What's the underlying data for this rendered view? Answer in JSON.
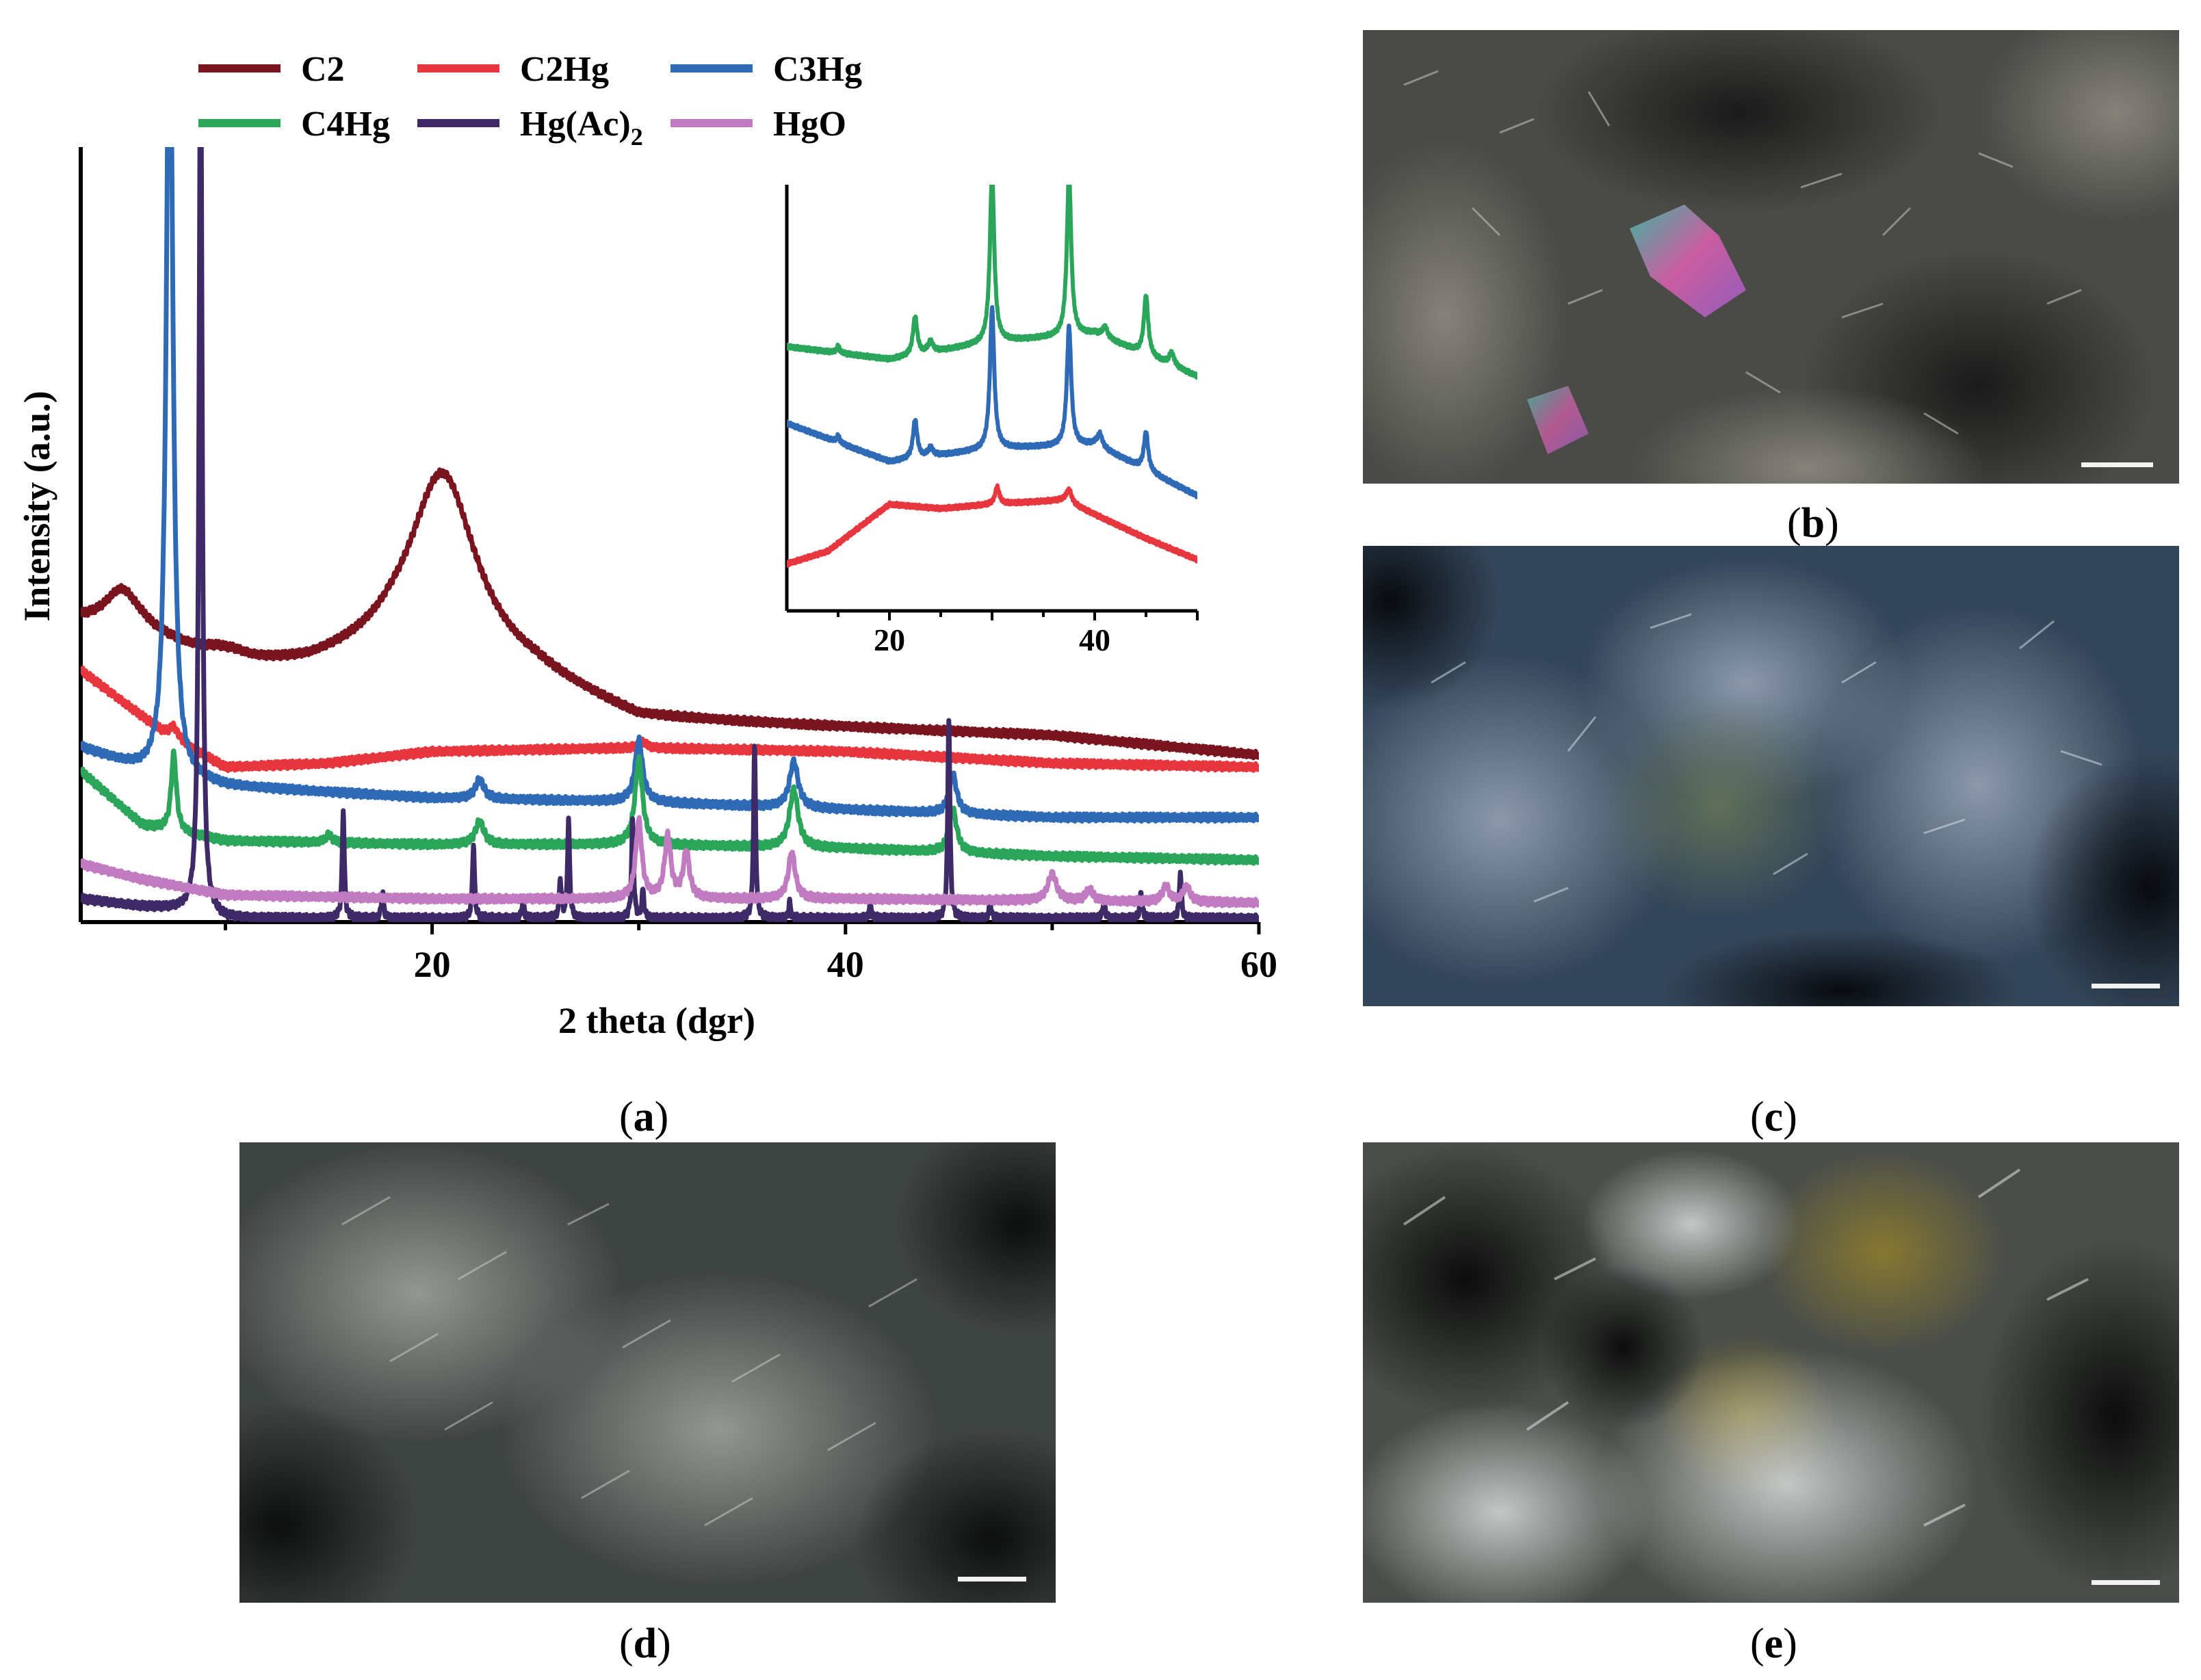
{
  "figure": {
    "panel_labels": {
      "a": "a",
      "b": "b",
      "c": "c",
      "d": "d",
      "e": "e"
    }
  },
  "micrographs": [
    {
      "panel": "b",
      "description_icon": "micrograph-b-crystals-image"
    },
    {
      "panel": "c",
      "description_icon": "micrograph-c-blue-grey-image"
    },
    {
      "panel": "d",
      "description_icon": "micrograph-d-needle-texture-image"
    },
    {
      "panel": "e",
      "description_icon": "micrograph-e-olive-crystal-image"
    }
  ],
  "chart_data": {
    "type": "line",
    "xlabel": "2 theta (dgr)",
    "ylabel": "Intensity (a.u.)",
    "xlim": [
      3,
      60
    ],
    "ylim": [
      0,
      10
    ],
    "x_ticks": [
      20,
      40,
      60
    ],
    "legend": {
      "placement": "top",
      "entries": [
        "C2",
        "C2Hg",
        "C3Hg",
        "C4Hg",
        "Hg(Ac)2",
        "HgO"
      ]
    },
    "series": [
      {
        "name": "C2",
        "color": "#7a1520",
        "baseline": [
          [
            3,
            3.85
          ],
          [
            6,
            3.7
          ],
          [
            10,
            3.25
          ],
          [
            14,
            3.25
          ],
          [
            18,
            3.4
          ],
          [
            25,
            3.1
          ],
          [
            30,
            2.6
          ],
          [
            40,
            2.5
          ],
          [
            50,
            2.4
          ],
          [
            60,
            2.15
          ]
        ],
        "peaks": [
          [
            5,
            0.5,
            1.0
          ],
          [
            10,
            0.2,
            1.2
          ],
          [
            20.5,
            2.5,
            2.0
          ]
        ]
      },
      {
        "name": "C2Hg",
        "color": "#e8363f",
        "baseline": [
          [
            3,
            3.25
          ],
          [
            5,
            2.85
          ],
          [
            7,
            2.45
          ],
          [
            10,
            2.0
          ],
          [
            15,
            2.05
          ],
          [
            20,
            2.2
          ],
          [
            30,
            2.25
          ],
          [
            40,
            2.2
          ],
          [
            50,
            2.05
          ],
          [
            60,
            2.0
          ]
        ],
        "peaks": [
          [
            7.5,
            0.15,
            0.25
          ],
          [
            30.2,
            0.08,
            0.2
          ]
        ]
      },
      {
        "name": "C3Hg",
        "color": "#2f6ab7",
        "baseline": [
          [
            3,
            2.25
          ],
          [
            6,
            1.95
          ],
          [
            10,
            1.75
          ],
          [
            20,
            1.6
          ],
          [
            30,
            1.55
          ],
          [
            40,
            1.45
          ],
          [
            50,
            1.35
          ],
          [
            60,
            1.35
          ]
        ],
        "peaks": [
          [
            7.3,
            11.0,
            0.18
          ],
          [
            22.3,
            0.25,
            0.25
          ],
          [
            30,
            0.8,
            0.22
          ],
          [
            37.5,
            0.6,
            0.25
          ],
          [
            45.2,
            0.5,
            0.22
          ]
        ]
      },
      {
        "name": "C4Hg",
        "color": "#2aa55a",
        "baseline": [
          [
            3,
            1.95
          ],
          [
            6,
            1.25
          ],
          [
            10,
            1.05
          ],
          [
            20,
            1.0
          ],
          [
            30,
            1.0
          ],
          [
            40,
            0.95
          ],
          [
            50,
            0.85
          ],
          [
            60,
            0.8
          ]
        ],
        "peaks": [
          [
            7.5,
            1.0,
            0.15
          ],
          [
            15,
            0.1,
            0.2
          ],
          [
            22.3,
            0.3,
            0.25
          ],
          [
            30,
            1.1,
            0.22
          ],
          [
            37.5,
            0.75,
            0.25
          ],
          [
            45.2,
            0.55,
            0.22
          ]
        ]
      },
      {
        "name": "Hg(Ac)2",
        "color": "#3d2a66",
        "baseline": [
          [
            3,
            0.3
          ],
          [
            6,
            0.2
          ],
          [
            8.5,
            0.15
          ],
          [
            10,
            0.05
          ],
          [
            60,
            0.05
          ]
        ],
        "peaks": [
          [
            8.8,
            11.5,
            0.09
          ],
          [
            15.7,
            1.4,
            0.06
          ],
          [
            17.6,
            0.35,
            0.06
          ],
          [
            22,
            0.95,
            0.06
          ],
          [
            24.4,
            0.25,
            0.06
          ],
          [
            26.2,
            0.5,
            0.06
          ],
          [
            26.6,
            1.25,
            0.06
          ],
          [
            29.7,
            1.25,
            0.06
          ],
          [
            30.2,
            0.35,
            0.06
          ],
          [
            35.6,
            2.2,
            0.06
          ],
          [
            37.3,
            0.2,
            0.06
          ],
          [
            41.2,
            0.2,
            0.06
          ],
          [
            45,
            2.6,
            0.06
          ],
          [
            47,
            0.2,
            0.06
          ],
          [
            52.5,
            0.25,
            0.06
          ],
          [
            54.3,
            0.35,
            0.06
          ],
          [
            56.2,
            0.6,
            0.06
          ]
        ]
      },
      {
        "name": "HgO",
        "color": "#c17cc1",
        "baseline": [
          [
            3,
            0.75
          ],
          [
            6,
            0.55
          ],
          [
            10,
            0.35
          ],
          [
            20,
            0.3
          ],
          [
            40,
            0.3
          ],
          [
            60,
            0.25
          ]
        ],
        "peaks": [
          [
            30,
            1.0,
            0.18
          ],
          [
            31.4,
            0.8,
            0.18
          ],
          [
            32.3,
            0.6,
            0.18
          ],
          [
            37.4,
            0.6,
            0.2
          ],
          [
            50,
            0.35,
            0.25
          ],
          [
            51.8,
            0.15,
            0.2
          ],
          [
            55.5,
            0.2,
            0.2
          ],
          [
            56.5,
            0.2,
            0.2
          ]
        ]
      }
    ],
    "inset": {
      "xlim": [
        10,
        50
      ],
      "x_ticks": [
        20,
        40
      ],
      "series": [
        {
          "name": "C4Hg",
          "color": "#2aa55a",
          "baseline": [
            [
              10,
              6.2
            ],
            [
              20,
              5.9
            ],
            [
              30,
              6.3
            ],
            [
              40,
              6.5
            ],
            [
              50,
              5.5
            ]
          ],
          "peaks": [
            [
              15,
              0.15,
              0.2
            ],
            [
              22.5,
              0.9,
              0.25
            ],
            [
              24,
              0.25,
              0.3
            ],
            [
              30,
              4.0,
              0.25
            ],
            [
              37.5,
              3.8,
              0.25
            ],
            [
              41,
              0.25,
              0.3
            ],
            [
              45,
              1.4,
              0.25
            ],
            [
              47.5,
              0.3,
              0.3
            ]
          ]
        },
        {
          "name": "C3Hg",
          "color": "#2f6ab7",
          "baseline": [
            [
              10,
              4.4
            ],
            [
              20,
              3.5
            ],
            [
              30,
              3.8
            ],
            [
              40,
              3.9
            ],
            [
              50,
              2.7
            ]
          ],
          "peaks": [
            [
              15,
              0.15,
              0.2
            ],
            [
              22.5,
              0.9,
              0.25
            ],
            [
              24,
              0.2,
              0.3
            ],
            [
              30,
              3.3,
              0.25
            ],
            [
              37.5,
              2.8,
              0.25
            ],
            [
              40.5,
              0.3,
              0.3
            ],
            [
              45,
              0.9,
              0.25
            ]
          ]
        },
        {
          "name": "C2Hg",
          "color": "#e8363f",
          "baseline": [
            [
              10,
              1.1
            ],
            [
              14,
              1.4
            ],
            [
              20,
              2.5
            ],
            [
              25,
              2.4
            ],
            [
              30,
              2.5
            ],
            [
              37,
              2.6
            ],
            [
              45,
              1.7
            ],
            [
              50,
              1.2
            ]
          ],
          "peaks": [
            [
              30.5,
              0.4,
              0.25
            ],
            [
              37.5,
              0.3,
              0.3
            ]
          ]
        }
      ]
    }
  }
}
